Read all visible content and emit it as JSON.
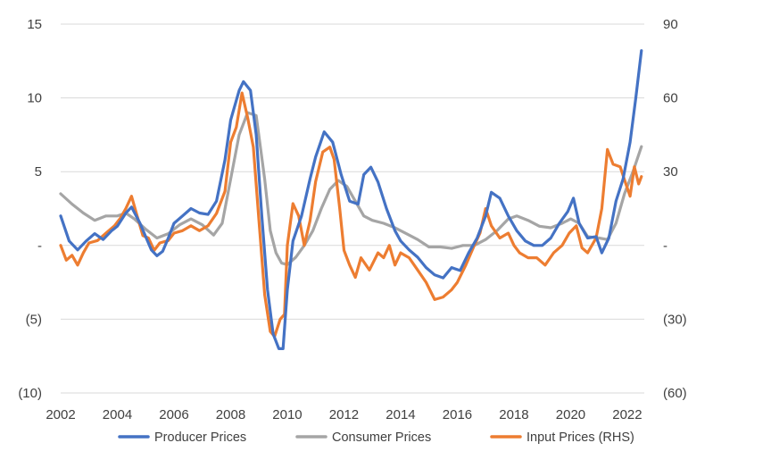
{
  "chart_data": {
    "type": "line",
    "title": "",
    "xlabel": "",
    "ylabel": "",
    "y2label": "",
    "grid": true,
    "legend_position": "bottom",
    "x_ticks": [
      "2002",
      "2004",
      "2006",
      "2008",
      "2010",
      "2012",
      "2014",
      "2016",
      "2018",
      "2020",
      "2022"
    ],
    "x_range": [
      2002,
      2022.6
    ],
    "y_left": {
      "range": [
        -10,
        15
      ],
      "ticks": [
        15,
        10,
        5,
        0,
        -5,
        -10
      ],
      "tick_labels": [
        "15",
        "10",
        "5",
        "-",
        "(5)",
        "(10)"
      ]
    },
    "y_right": {
      "range": [
        -60,
        90
      ],
      "ticks": [
        90,
        60,
        30,
        0,
        -30,
        -60
      ],
      "tick_labels": [
        "90",
        "60",
        "30",
        "-",
        "(30)",
        "(60)"
      ]
    },
    "series": [
      {
        "name": "Producer Prices",
        "axis": "left",
        "color": "#4472C4",
        "points": [
          [
            2002.0,
            2.0
          ],
          [
            2002.3,
            0.3
          ],
          [
            2002.6,
            -0.3
          ],
          [
            2002.9,
            0.3
          ],
          [
            2003.2,
            0.8
          ],
          [
            2003.5,
            0.4
          ],
          [
            2003.8,
            1.0
          ],
          [
            2004.0,
            1.3
          ],
          [
            2004.3,
            2.2
          ],
          [
            2004.5,
            2.6
          ],
          [
            2004.8,
            1.5
          ],
          [
            2005.0,
            0.6
          ],
          [
            2005.2,
            -0.3
          ],
          [
            2005.4,
            -0.7
          ],
          [
            2005.6,
            -0.4
          ],
          [
            2005.8,
            0.5
          ],
          [
            2006.0,
            1.5
          ],
          [
            2006.3,
            2.0
          ],
          [
            2006.6,
            2.5
          ],
          [
            2006.9,
            2.2
          ],
          [
            2007.2,
            2.1
          ],
          [
            2007.5,
            3.0
          ],
          [
            2007.8,
            5.8
          ],
          [
            2008.0,
            8.5
          ],
          [
            2008.3,
            10.5
          ],
          [
            2008.45,
            11.1
          ],
          [
            2008.7,
            10.5
          ],
          [
            2008.9,
            7.5
          ],
          [
            2009.1,
            2.0
          ],
          [
            2009.3,
            -3.0
          ],
          [
            2009.5,
            -6.0
          ],
          [
            2009.7,
            -7.0
          ],
          [
            2009.85,
            -7.0
          ],
          [
            2010.0,
            -3.0
          ],
          [
            2010.2,
            0.3
          ],
          [
            2010.5,
            2.0
          ],
          [
            2010.8,
            4.5
          ],
          [
            2011.0,
            6.0
          ],
          [
            2011.3,
            7.7
          ],
          [
            2011.6,
            7.0
          ],
          [
            2011.9,
            4.8
          ],
          [
            2012.2,
            3.0
          ],
          [
            2012.5,
            2.8
          ],
          [
            2012.7,
            4.8
          ],
          [
            2012.95,
            5.3
          ],
          [
            2013.2,
            4.3
          ],
          [
            2013.5,
            2.5
          ],
          [
            2013.8,
            1.0
          ],
          [
            2014.0,
            0.3
          ],
          [
            2014.3,
            -0.3
          ],
          [
            2014.6,
            -0.8
          ],
          [
            2014.9,
            -1.5
          ],
          [
            2015.2,
            -2.0
          ],
          [
            2015.5,
            -2.2
          ],
          [
            2015.8,
            -1.5
          ],
          [
            2016.1,
            -1.7
          ],
          [
            2016.4,
            -0.5
          ],
          [
            2016.7,
            0.5
          ],
          [
            2017.0,
            2.0
          ],
          [
            2017.2,
            3.6
          ],
          [
            2017.5,
            3.2
          ],
          [
            2017.8,
            2.0
          ],
          [
            2018.1,
            1.0
          ],
          [
            2018.4,
            0.3
          ],
          [
            2018.7,
            0.0
          ],
          [
            2019.0,
            0.0
          ],
          [
            2019.3,
            0.5
          ],
          [
            2019.6,
            1.5
          ],
          [
            2019.9,
            2.3
          ],
          [
            2020.1,
            3.2
          ],
          [
            2020.3,
            1.5
          ],
          [
            2020.6,
            0.5
          ],
          [
            2020.9,
            0.6
          ],
          [
            2021.1,
            -0.5
          ],
          [
            2021.35,
            0.5
          ],
          [
            2021.6,
            3.0
          ],
          [
            2021.85,
            4.5
          ],
          [
            2022.1,
            7.0
          ],
          [
            2022.3,
            10.0
          ],
          [
            2022.5,
            13.2
          ]
        ]
      },
      {
        "name": "Consumer Prices",
        "axis": "left",
        "color": "#A5A5A5",
        "points": [
          [
            2002.0,
            3.5
          ],
          [
            2002.4,
            2.8
          ],
          [
            2002.8,
            2.2
          ],
          [
            2003.2,
            1.7
          ],
          [
            2003.6,
            2.0
          ],
          [
            2004.0,
            2.0
          ],
          [
            2004.3,
            2.2
          ],
          [
            2004.6,
            1.8
          ],
          [
            2005.0,
            1.1
          ],
          [
            2005.4,
            0.5
          ],
          [
            2005.8,
            0.8
          ],
          [
            2006.2,
            1.4
          ],
          [
            2006.6,
            1.8
          ],
          [
            2007.0,
            1.4
          ],
          [
            2007.4,
            0.7
          ],
          [
            2007.7,
            1.5
          ],
          [
            2008.0,
            4.5
          ],
          [
            2008.3,
            7.5
          ],
          [
            2008.6,
            9.0
          ],
          [
            2008.9,
            8.8
          ],
          [
            2009.2,
            4.5
          ],
          [
            2009.4,
            1.0
          ],
          [
            2009.6,
            -0.5
          ],
          [
            2009.8,
            -1.2
          ],
          [
            2010.0,
            -1.3
          ],
          [
            2010.3,
            -0.8
          ],
          [
            2010.6,
            0.0
          ],
          [
            2010.9,
            1.0
          ],
          [
            2011.2,
            2.5
          ],
          [
            2011.5,
            3.8
          ],
          [
            2011.8,
            4.4
          ],
          [
            2012.1,
            4.0
          ],
          [
            2012.4,
            3.0
          ],
          [
            2012.7,
            2.0
          ],
          [
            2013.0,
            1.7
          ],
          [
            2013.4,
            1.5
          ],
          [
            2013.8,
            1.2
          ],
          [
            2014.2,
            0.8
          ],
          [
            2014.6,
            0.4
          ],
          [
            2015.0,
            -0.1
          ],
          [
            2015.4,
            -0.1
          ],
          [
            2015.8,
            -0.2
          ],
          [
            2016.2,
            0.0
          ],
          [
            2016.6,
            0.0
          ],
          [
            2017.0,
            0.4
          ],
          [
            2017.4,
            1.0
          ],
          [
            2017.8,
            1.8
          ],
          [
            2018.1,
            2.0
          ],
          [
            2018.5,
            1.7
          ],
          [
            2018.9,
            1.3
          ],
          [
            2019.3,
            1.2
          ],
          [
            2019.7,
            1.5
          ],
          [
            2020.0,
            1.8
          ],
          [
            2020.3,
            1.5
          ],
          [
            2020.6,
            0.6
          ],
          [
            2021.0,
            0.5
          ],
          [
            2021.3,
            0.4
          ],
          [
            2021.6,
            1.5
          ],
          [
            2021.9,
            3.5
          ],
          [
            2022.2,
            5.0
          ],
          [
            2022.5,
            6.7
          ]
        ]
      },
      {
        "name": "Input Prices (RHS)",
        "axis": "right",
        "color": "#ED7D31",
        "points": [
          [
            2002.0,
            0.0
          ],
          [
            2002.2,
            -6.0
          ],
          [
            2002.4,
            -4.0
          ],
          [
            2002.6,
            -8.0
          ],
          [
            2002.8,
            -3.0
          ],
          [
            2003.0,
            1.0
          ],
          [
            2003.3,
            2.0
          ],
          [
            2003.6,
            5.0
          ],
          [
            2003.9,
            8.0
          ],
          [
            2004.1,
            11.0
          ],
          [
            2004.3,
            15.0
          ],
          [
            2004.5,
            20.0
          ],
          [
            2004.7,
            12.0
          ],
          [
            2004.9,
            4.0
          ],
          [
            2005.1,
            3.0
          ],
          [
            2005.3,
            -2.0
          ],
          [
            2005.5,
            1.0
          ],
          [
            2005.8,
            2.0
          ],
          [
            2006.0,
            5.0
          ],
          [
            2006.3,
            6.0
          ],
          [
            2006.6,
            8.0
          ],
          [
            2006.9,
            6.0
          ],
          [
            2007.2,
            8.0
          ],
          [
            2007.5,
            13.0
          ],
          [
            2007.8,
            22.0
          ],
          [
            2008.0,
            42.0
          ],
          [
            2008.2,
            48.0
          ],
          [
            2008.4,
            62.0
          ],
          [
            2008.6,
            52.0
          ],
          [
            2008.8,
            40.0
          ],
          [
            2009.0,
            10.0
          ],
          [
            2009.2,
            -20.0
          ],
          [
            2009.4,
            -35.0
          ],
          [
            2009.55,
            -37.0
          ],
          [
            2009.75,
            -30.0
          ],
          [
            2009.9,
            -28.0
          ],
          [
            2010.0,
            0.0
          ],
          [
            2010.2,
            17.0
          ],
          [
            2010.4,
            12.0
          ],
          [
            2010.6,
            0.0
          ],
          [
            2010.8,
            10.0
          ],
          [
            2011.0,
            26.0
          ],
          [
            2011.25,
            38.0
          ],
          [
            2011.5,
            40.0
          ],
          [
            2011.65,
            35.0
          ],
          [
            2011.85,
            15.0
          ],
          [
            2012.0,
            -2.0
          ],
          [
            2012.2,
            -8.0
          ],
          [
            2012.4,
            -13.0
          ],
          [
            2012.6,
            -5.0
          ],
          [
            2012.9,
            -10.0
          ],
          [
            2013.2,
            -3.0
          ],
          [
            2013.4,
            -5.0
          ],
          [
            2013.6,
            0.0
          ],
          [
            2013.8,
            -8.0
          ],
          [
            2014.0,
            -3.0
          ],
          [
            2014.3,
            -5.0
          ],
          [
            2014.6,
            -10.0
          ],
          [
            2014.9,
            -15.0
          ],
          [
            2015.2,
            -22.0
          ],
          [
            2015.5,
            -21.0
          ],
          [
            2015.8,
            -18.0
          ],
          [
            2016.0,
            -15.0
          ],
          [
            2016.3,
            -8.0
          ],
          [
            2016.6,
            0.0
          ],
          [
            2016.8,
            5.0
          ],
          [
            2017.0,
            15.0
          ],
          [
            2017.2,
            8.0
          ],
          [
            2017.5,
            3.0
          ],
          [
            2017.8,
            5.0
          ],
          [
            2018.0,
            0.0
          ],
          [
            2018.2,
            -3.0
          ],
          [
            2018.5,
            -5.0
          ],
          [
            2018.8,
            -5.0
          ],
          [
            2019.1,
            -8.0
          ],
          [
            2019.4,
            -3.0
          ],
          [
            2019.7,
            0.0
          ],
          [
            2019.95,
            5.0
          ],
          [
            2020.2,
            8.0
          ],
          [
            2020.4,
            -1.0
          ],
          [
            2020.6,
            -3.0
          ],
          [
            2020.9,
            3.0
          ],
          [
            2021.1,
            15.0
          ],
          [
            2021.3,
            39.0
          ],
          [
            2021.5,
            33.0
          ],
          [
            2021.75,
            32.0
          ],
          [
            2021.95,
            25.0
          ],
          [
            2022.1,
            20.0
          ],
          [
            2022.25,
            32.0
          ],
          [
            2022.4,
            25.0
          ],
          [
            2022.5,
            28.0
          ]
        ]
      }
    ]
  }
}
